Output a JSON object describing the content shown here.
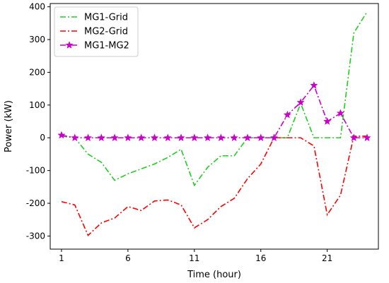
{
  "chart_data": {
    "type": "line",
    "xlabel": "Time (hour)",
    "ylabel": "Power (kW)",
    "xlim": [
      0.15,
      24.85
    ],
    "ylim": [
      -340,
      410
    ],
    "xticks": [
      1,
      6,
      11,
      16,
      21
    ],
    "yticks": [
      -300,
      -200,
      -100,
      0,
      100,
      200,
      300,
      400
    ],
    "legend_position": "top-left",
    "x": [
      1,
      2,
      3,
      4,
      5,
      6,
      7,
      8,
      9,
      10,
      11,
      12,
      13,
      14,
      15,
      16,
      17,
      18,
      19,
      20,
      21,
      22,
      23,
      24
    ],
    "series": [
      {
        "name": "MG1-Grid",
        "color": "#22cc22",
        "linestyle": "dashdot",
        "marker": "none",
        "values": [
          5,
          0,
          -50,
          -75,
          -130,
          -110,
          -95,
          -80,
          -60,
          -35,
          -145,
          -90,
          -55,
          -55,
          0,
          0,
          0,
          0,
          105,
          0,
          0,
          0,
          320,
          385
        ]
      },
      {
        "name": "MG2-Grid",
        "color": "#ff0000",
        "linestyle": "dashdot",
        "marker": "none",
        "values": [
          -195,
          -205,
          -298,
          -260,
          -245,
          -210,
          -222,
          -193,
          -190,
          -205,
          -275,
          -250,
          -210,
          -185,
          -125,
          -80,
          0,
          0,
          0,
          -25,
          -235,
          -175,
          5,
          5
        ]
      },
      {
        "name": "MG1-MG2",
        "color": "#cc00cc",
        "linestyle": "dashdot",
        "marker": "star",
        "values": [
          8,
          0,
          0,
          0,
          0,
          0,
          0,
          0,
          0,
          0,
          0,
          0,
          0,
          0,
          0,
          0,
          0,
          70,
          108,
          160,
          50,
          75,
          0,
          0
        ]
      }
    ]
  }
}
